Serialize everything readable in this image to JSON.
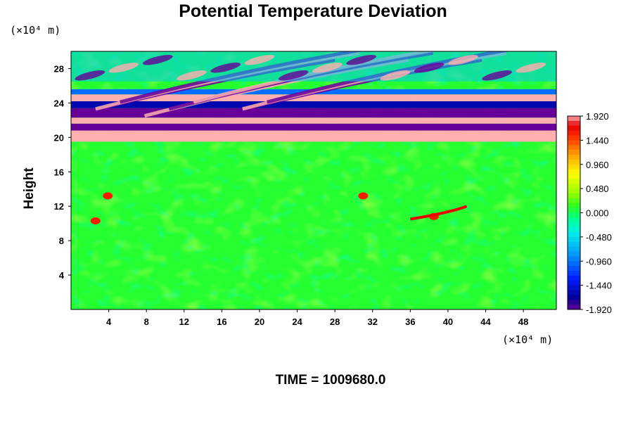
{
  "chart_data": {
    "type": "heatmap",
    "title": "Potential Temperature Deviation",
    "xlabel": "",
    "ylabel": "Height",
    "x_unit": "(×10⁴ m)",
    "y_unit": "(×10⁴ m)",
    "footer": "TIME = 1009680.0",
    "xlim": [
      0,
      51.5
    ],
    "ylim": [
      0,
      30
    ],
    "x_ticks": [
      "4",
      "8",
      "12",
      "16",
      "20",
      "24",
      "28",
      "32",
      "36",
      "40",
      "44",
      "48"
    ],
    "y_ticks": [
      "4",
      "8",
      "12",
      "16",
      "20",
      "24",
      "28"
    ],
    "colorbar": {
      "min": -1.92,
      "max": 1.92,
      "tick_labels": [
        "1.920",
        "1.440",
        "0.960",
        "0.480",
        "0.000",
        "-0.480",
        "-0.960",
        "-1.440",
        "-1.920"
      ]
    },
    "regions": [
      {
        "y_range": [
          0,
          19.5
        ],
        "approx_value": 0.1,
        "description": "near-neutral lower layer"
      },
      {
        "y_range": [
          19.5,
          30
        ],
        "approx_value_range": [
          -1.92,
          1.92
        ],
        "description": "banded wave pattern above ~20"
      }
    ]
  }
}
